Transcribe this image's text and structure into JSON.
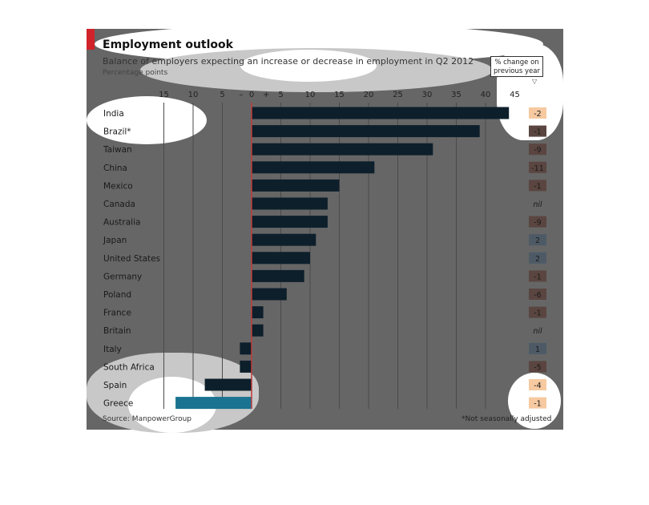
{
  "chart_data": {
    "type": "bar",
    "orientation": "horizontal",
    "title": "Employment outlook",
    "subtitle": "Balance of employers expecting an increase or decrease in employment in Q2 2012",
    "units_label": "Percentage points",
    "xlim": [
      -15,
      45
    ],
    "x_ticks_negative": [
      "15",
      "10",
      "5",
      "–"
    ],
    "x_ticks_positive": [
      "+",
      "5",
      "10",
      "15",
      "20",
      "25",
      "30",
      "35",
      "40",
      "45"
    ],
    "x_tick_zero": "0",
    "categories": [
      "India",
      "Brazil*",
      "Taiwan",
      "China",
      "Mexico",
      "Canada",
      "Australia",
      "Japan",
      "United States",
      "Germany",
      "Poland",
      "France",
      "Britain",
      "Italy",
      "South Africa",
      "Spain",
      "Greece"
    ],
    "values": [
      44,
      39,
      31,
      21,
      15,
      13,
      13,
      11,
      10,
      9,
      6,
      2,
      2,
      -2,
      -2,
      -8,
      -13
    ],
    "highlight_category": "Greece",
    "change_label": "% change on previous year",
    "change_values": [
      "-2",
      "-1",
      "-9",
      "-11",
      "-1",
      "nil",
      "-9",
      "2",
      "2",
      "-1",
      "-6",
      "-1",
      "nil",
      "1",
      "-5",
      "-4",
      "-1"
    ],
    "grid": true,
    "colors": {
      "bar": "#0d1f2b",
      "highlight": "#1a7390",
      "zero_line": "#c23a3a",
      "decrease": "#f6c9a0",
      "increase": "#b5cbd9",
      "background": "#666666"
    }
  },
  "source": "Source: ManpowerGroup",
  "footnote": "*Not seasonally adjusted"
}
